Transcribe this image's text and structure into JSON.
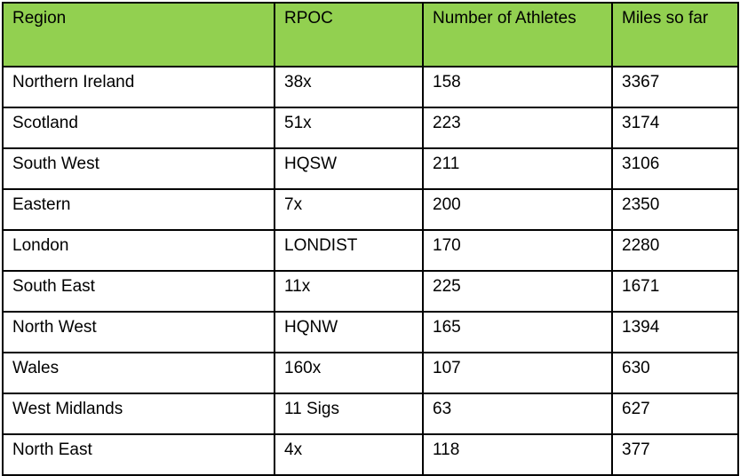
{
  "table": {
    "header": [
      "Region",
      "RPOC",
      "Number of Athletes",
      "Miles so far"
    ],
    "rows": [
      [
        "Northern Ireland",
        "38x",
        158,
        3367
      ],
      [
        "Scotland",
        "51x",
        223,
        3174
      ],
      [
        "South West",
        "HQSW",
        211,
        3106
      ],
      [
        "Eastern",
        "7x",
        200,
        2350
      ],
      [
        "London",
        "LONDIST",
        170,
        2280
      ],
      [
        "South East",
        "11x",
        225,
        1671
      ],
      [
        "North West",
        "HQNW",
        165,
        1394
      ],
      [
        "Wales",
        "160x",
        107,
        630
      ],
      [
        "West Midlands",
        "11 Sigs",
        63,
        627
      ],
      [
        "North East",
        "4x",
        118,
        377
      ]
    ]
  }
}
